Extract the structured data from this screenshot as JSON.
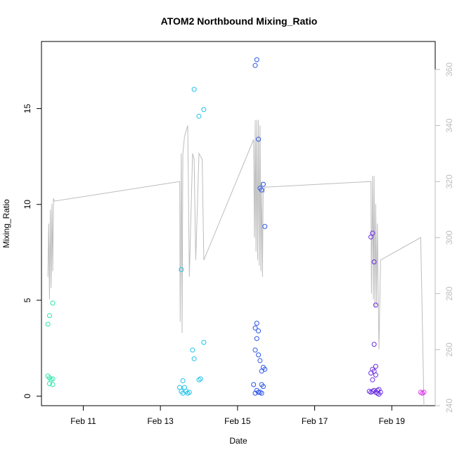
{
  "chart_data": {
    "type": "scatter",
    "title": "ATOM2 Northbound Mixing_Ratio",
    "xlabel": "Date",
    "ylabel": "Mixing_Ratio",
    "x_axis": {
      "type": "date",
      "range": [
        "2016-02-09T22:00",
        "2016-02-20T03:00"
      ],
      "ticks": [
        "2016-02-11",
        "2016-02-13",
        "2016-02-15",
        "2016-02-17",
        "2016-02-19"
      ],
      "tick_labels": [
        "Feb 11",
        "Feb 13",
        "Feb 15",
        "Feb 17",
        "Feb 19"
      ]
    },
    "y_axis": {
      "range": [
        -0.5,
        18.5
      ],
      "ticks": [
        0,
        5,
        10,
        15
      ],
      "tick_labels": [
        "0",
        "5",
        "10",
        "15"
      ]
    },
    "y2_axis": {
      "range": [
        240,
        370
      ],
      "ticks": [
        240,
        260,
        280,
        300,
        320,
        340,
        360
      ],
      "tick_labels": [
        "240",
        "260",
        "280",
        "300",
        "320",
        "340",
        "360"
      ],
      "color": "#bdbdbd"
    },
    "grid": false,
    "points": [
      {
        "x": "2016-02-10T02:00",
        "y": 3.75,
        "color": "#2fe6ab"
      },
      {
        "x": "2016-02-10T03:00",
        "y": 4.2,
        "color": "#2fe6ab"
      },
      {
        "x": "2016-02-10T05:00",
        "y": 4.85,
        "color": "#2fe6ab"
      },
      {
        "x": "2016-02-10T02:00",
        "y": 1.05,
        "color": "#2fe6ab"
      },
      {
        "x": "2016-02-10T03:00",
        "y": 0.95,
        "color": "#2fe6ab"
      },
      {
        "x": "2016-02-10T04:00",
        "y": 0.85,
        "color": "#2fe6ab"
      },
      {
        "x": "2016-02-10T05:00",
        "y": 0.9,
        "color": "#2fe6ab"
      },
      {
        "x": "2016-02-10T03:00",
        "y": 0.65,
        "color": "#2fe6ab"
      },
      {
        "x": "2016-02-10T05:00",
        "y": 0.6,
        "color": "#2fe6ab"
      },
      {
        "x": "2016-02-13T13:00",
        "y": 6.6,
        "color": "#1ec2ea"
      },
      {
        "x": "2016-02-13T21:00",
        "y": 16.0,
        "color": "#1ec2ea"
      },
      {
        "x": "2016-02-14T00:00",
        "y": 14.6,
        "color": "#1ec2ea"
      },
      {
        "x": "2016-02-14T03:00",
        "y": 14.95,
        "color": "#1ec2ea"
      },
      {
        "x": "2016-02-13T20:00",
        "y": 2.4,
        "color": "#1ec2ea"
      },
      {
        "x": "2016-02-13T21:00",
        "y": 1.95,
        "color": "#1ec2ea"
      },
      {
        "x": "2016-02-14T03:00",
        "y": 2.8,
        "color": "#1ec2ea"
      },
      {
        "x": "2016-02-14T01:00",
        "y": 0.9,
        "color": "#1ec2ea"
      },
      {
        "x": "2016-02-14T00:00",
        "y": 0.85,
        "color": "#1ec2ea"
      },
      {
        "x": "2016-02-13T14:00",
        "y": 0.8,
        "color": "#1ec2ea"
      },
      {
        "x": "2016-02-13T12:00",
        "y": 0.45,
        "color": "#1ec2ea"
      },
      {
        "x": "2016-02-13T15:00",
        "y": 0.45,
        "color": "#1ec2ea"
      },
      {
        "x": "2016-02-13T13:00",
        "y": 0.25,
        "color": "#1ec2ea"
      },
      {
        "x": "2016-02-13T16:00",
        "y": 0.25,
        "color": "#1ec2ea"
      },
      {
        "x": "2016-02-13T18:00",
        "y": 0.2,
        "color": "#1ec2ea"
      },
      {
        "x": "2016-02-13T14:00",
        "y": 0.15,
        "color": "#1ec2ea"
      },
      {
        "x": "2016-02-13T17:00",
        "y": 0.15,
        "color": "#1ec2ea"
      },
      {
        "x": "2016-02-15T11:00",
        "y": 17.25,
        "color": "#2a55e8"
      },
      {
        "x": "2016-02-15T12:00",
        "y": 17.55,
        "color": "#2a55e8"
      },
      {
        "x": "2016-02-15T13:00",
        "y": 13.4,
        "color": "#2a55e8"
      },
      {
        "x": "2016-02-15T14:00",
        "y": 10.85,
        "color": "#2a55e8"
      },
      {
        "x": "2016-02-15T15:00",
        "y": 10.75,
        "color": "#2a55e8"
      },
      {
        "x": "2016-02-15T16:00",
        "y": 11.05,
        "color": "#2a55e8"
      },
      {
        "x": "2016-02-15T17:00",
        "y": 8.85,
        "color": "#2a55e8"
      },
      {
        "x": "2016-02-15T11:00",
        "y": 3.55,
        "color": "#2a55e8"
      },
      {
        "x": "2016-02-15T12:00",
        "y": 3.8,
        "color": "#2a55e8"
      },
      {
        "x": "2016-02-15T13:00",
        "y": 3.4,
        "color": "#2a55e8"
      },
      {
        "x": "2016-02-15T12:00",
        "y": 3.0,
        "color": "#2a55e8"
      },
      {
        "x": "2016-02-15T11:00",
        "y": 2.4,
        "color": "#2a55e8"
      },
      {
        "x": "2016-02-15T13:00",
        "y": 2.15,
        "color": "#2a55e8"
      },
      {
        "x": "2016-02-15T14:00",
        "y": 1.85,
        "color": "#2a55e8"
      },
      {
        "x": "2016-02-15T16:00",
        "y": 1.5,
        "color": "#2a55e8"
      },
      {
        "x": "2016-02-15T17:00",
        "y": 1.4,
        "color": "#2a55e8"
      },
      {
        "x": "2016-02-15T15:00",
        "y": 1.3,
        "color": "#2a55e8"
      },
      {
        "x": "2016-02-15T10:00",
        "y": 0.6,
        "color": "#2a55e8"
      },
      {
        "x": "2016-02-15T15:00",
        "y": 0.6,
        "color": "#2a55e8"
      },
      {
        "x": "2016-02-15T16:00",
        "y": 0.5,
        "color": "#2a55e8"
      },
      {
        "x": "2016-02-15T12:00",
        "y": 0.3,
        "color": "#2a55e8"
      },
      {
        "x": "2016-02-15T13:00",
        "y": 0.2,
        "color": "#2a55e8"
      },
      {
        "x": "2016-02-15T11:00",
        "y": 0.15,
        "color": "#2a55e8"
      },
      {
        "x": "2016-02-15T14:00",
        "y": 0.2,
        "color": "#2a55e8"
      },
      {
        "x": "2016-02-15T15:00",
        "y": 0.15,
        "color": "#2a55e8"
      },
      {
        "x": "2016-02-18T11:00",
        "y": 8.3,
        "color": "#6a2de0"
      },
      {
        "x": "2016-02-18T12:00",
        "y": 8.5,
        "color": "#6a2de0"
      },
      {
        "x": "2016-02-18T13:00",
        "y": 7.0,
        "color": "#6a2de0"
      },
      {
        "x": "2016-02-18T14:00",
        "y": 4.75,
        "color": "#6a2de0"
      },
      {
        "x": "2016-02-18T13:00",
        "y": 2.7,
        "color": "#6a2de0"
      },
      {
        "x": "2016-02-18T14:00",
        "y": 1.55,
        "color": "#6a2de0"
      },
      {
        "x": "2016-02-18T12:00",
        "y": 1.4,
        "color": "#6a2de0"
      },
      {
        "x": "2016-02-18T13:00",
        "y": 1.3,
        "color": "#6a2de0"
      },
      {
        "x": "2016-02-18T11:00",
        "y": 1.2,
        "color": "#6a2de0"
      },
      {
        "x": "2016-02-18T14:00",
        "y": 1.1,
        "color": "#6a2de0"
      },
      {
        "x": "2016-02-18T12:00",
        "y": 0.85,
        "color": "#6a2de0"
      },
      {
        "x": "2016-02-18T10:00",
        "y": 0.25,
        "color": "#6a2de0"
      },
      {
        "x": "2016-02-18T11:00",
        "y": 0.2,
        "color": "#6a2de0"
      },
      {
        "x": "2016-02-18T12:00",
        "y": 0.25,
        "color": "#6a2de0"
      },
      {
        "x": "2016-02-18T13:00",
        "y": 0.3,
        "color": "#6a2de0"
      },
      {
        "x": "2016-02-18T14:00",
        "y": 0.2,
        "color": "#6a2de0"
      },
      {
        "x": "2016-02-18T15:00",
        "y": 0.3,
        "color": "#6a2de0"
      },
      {
        "x": "2016-02-18T16:00",
        "y": 0.35,
        "color": "#6a2de0"
      },
      {
        "x": "2016-02-18T15:00",
        "y": 0.15,
        "color": "#6a2de0"
      },
      {
        "x": "2016-02-18T16:00",
        "y": 0.1,
        "color": "#6a2de0"
      },
      {
        "x": "2016-02-18T17:00",
        "y": 0.2,
        "color": "#6a2de0"
      },
      {
        "x": "2016-02-19T18:00",
        "y": 0.2,
        "color": "#d838e8"
      },
      {
        "x": "2016-02-19T19:00",
        "y": 0.15,
        "color": "#d838e8"
      },
      {
        "x": "2016-02-19T20:00",
        "y": 0.2,
        "color": "#d838e8"
      }
    ],
    "line_series": {
      "color": "#bdbdbd",
      "axis": "right",
      "points": [
        [
          "2016-02-10T02:00",
          286
        ],
        [
          "2016-02-10T02:30",
          305
        ],
        [
          "2016-02-10T03:00",
          278
        ],
        [
          "2016-02-10T03:30",
          310
        ],
        [
          "2016-02-10T04:00",
          282
        ],
        [
          "2016-02-10T04:30",
          312
        ],
        [
          "2016-02-10T05:00",
          288
        ],
        [
          "2016-02-10T05:30",
          314
        ],
        [
          "2016-02-10T06:00",
          313
        ],
        [
          "2016-02-13T12:00",
          320
        ],
        [
          "2016-02-13T12:20",
          270
        ],
        [
          "2016-02-13T13:00",
          330
        ],
        [
          "2016-02-13T13:30",
          266
        ],
        [
          "2016-02-13T14:00",
          330
        ],
        [
          "2016-02-13T15:00",
          336
        ],
        [
          "2016-02-13T17:00",
          340
        ],
        [
          "2016-02-13T18:00",
          286
        ],
        [
          "2016-02-13T20:00",
          330
        ],
        [
          "2016-02-13T21:00",
          328
        ],
        [
          "2016-02-13T22:00",
          292
        ],
        [
          "2016-02-14T00:00",
          330
        ],
        [
          "2016-02-14T02:00",
          328
        ],
        [
          "2016-02-14T03:00",
          292
        ],
        [
          "2016-02-15T10:00",
          335
        ],
        [
          "2016-02-15T10:30",
          300
        ],
        [
          "2016-02-15T11:00",
          342
        ],
        [
          "2016-02-15T11:30",
          295
        ],
        [
          "2016-02-15T12:00",
          342
        ],
        [
          "2016-02-15T12:30",
          292
        ],
        [
          "2016-02-15T13:00",
          342
        ],
        [
          "2016-02-15T13:30",
          290
        ],
        [
          "2016-02-15T14:00",
          340
        ],
        [
          "2016-02-15T14:30",
          288
        ],
        [
          "2016-02-15T15:00",
          320
        ],
        [
          "2016-02-15T15:30",
          286
        ],
        [
          "2016-02-15T16:00",
          318
        ],
        [
          "2016-02-15T16:30",
          316
        ],
        [
          "2016-02-15T17:00",
          318
        ],
        [
          "2016-02-18T11:00",
          320
        ],
        [
          "2016-02-18T11:20",
          280
        ],
        [
          "2016-02-18T12:00",
          322
        ],
        [
          "2016-02-18T12:30",
          278
        ],
        [
          "2016-02-18T13:00",
          322
        ],
        [
          "2016-02-18T13:30",
          275
        ],
        [
          "2016-02-18T14:00",
          312
        ],
        [
          "2016-02-18T14:30",
          276
        ],
        [
          "2016-02-18T15:00",
          305
        ],
        [
          "2016-02-18T16:00",
          260
        ],
        [
          "2016-02-18T17:00",
          292
        ],
        [
          "2016-02-19T18:00",
          300
        ],
        [
          "2016-02-19T20:00",
          240
        ]
      ]
    }
  }
}
